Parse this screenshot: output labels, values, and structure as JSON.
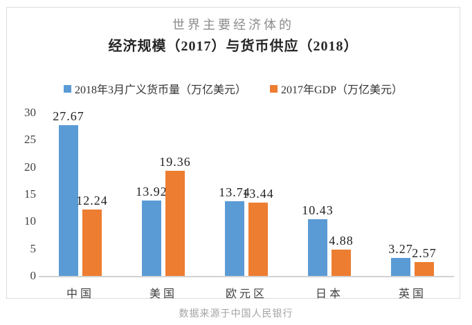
{
  "header": {
    "title_line1": "世界主要经济体的",
    "title_line2": "经济规模（2017）与货币供应（2018）"
  },
  "footer": {
    "source_note": "数据来源于中国人民银行"
  },
  "chart_data": {
    "type": "bar",
    "title": "世界主要经济体的经济规模（2017）与货币供应（2018）",
    "categories": [
      "中国",
      "美国",
      "欧元区",
      "日本",
      "英国"
    ],
    "series": [
      {
        "name": "2018年3月广义货币量（万亿美元）",
        "color": "#5B9BD5",
        "values": [
          27.67,
          13.92,
          13.74,
          10.43,
          3.27
        ]
      },
      {
        "name": "2017年GDP（万亿美元）",
        "color": "#ED7D31",
        "values": [
          12.24,
          19.36,
          13.44,
          4.88,
          2.57
        ]
      }
    ],
    "ylim": [
      0,
      30
    ],
    "yticks": [
      0,
      5,
      10,
      15,
      20,
      25,
      30
    ],
    "grid": false,
    "legend_position": "top",
    "value_labels": true,
    "source_note": "数据来源于中国人民银行"
  }
}
